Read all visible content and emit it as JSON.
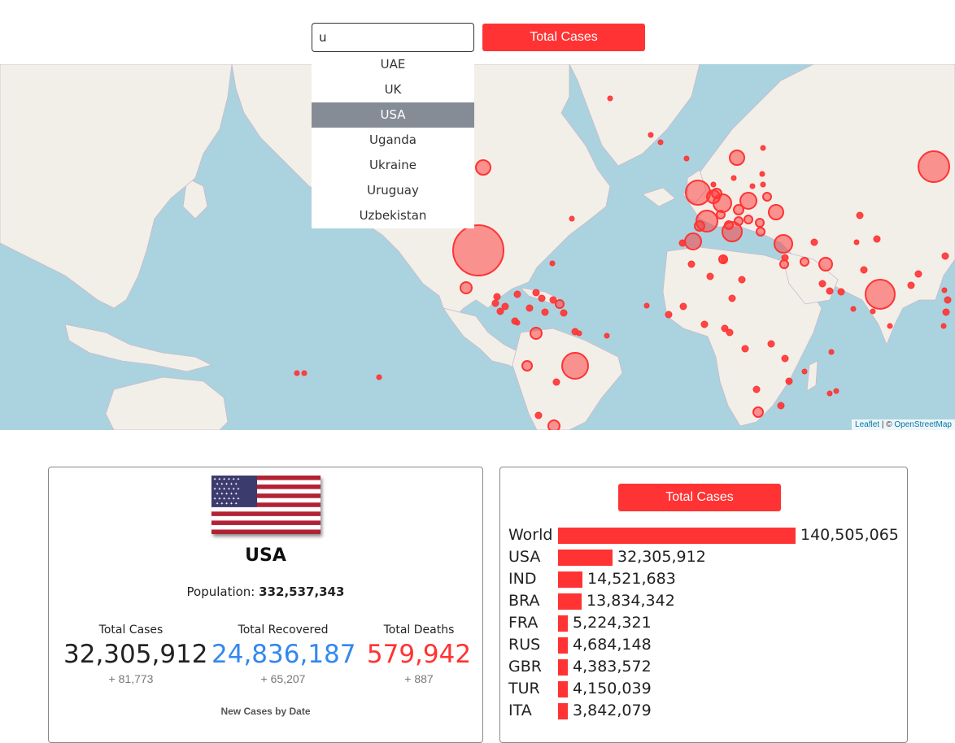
{
  "search": {
    "value": "u"
  },
  "top_button": {
    "label": "Total Cases"
  },
  "dropdown": {
    "items": [
      "UAE",
      "UK",
      "USA",
      "Uganda",
      "Ukraine",
      "Uruguay",
      "Uzbekistan"
    ],
    "active_index": 2
  },
  "map": {
    "attribution_leaflet": "Leaflet",
    "attribution_sep": " | © ",
    "attribution_osm": "OpenStreetMap",
    "ocean_color": "#aad3df",
    "land_color": "#f2efe9",
    "marker_color": "#ff3333"
  },
  "country_card": {
    "flag_icon": "usa-flag-icon",
    "name": "USA",
    "population_label": "Population:",
    "population_value": "332,537,343",
    "total_cases_label": "Total Cases",
    "total_cases_value": "32,305,912",
    "total_cases_delta": "+ 81,773",
    "total_recovered_label": "Total Recovered",
    "total_recovered_value": "24,836,187",
    "total_recovered_delta": "+ 65,207",
    "total_deaths_label": "Total Deaths",
    "total_deaths_value": "579,942",
    "total_deaths_delta": "+ 887",
    "graph_title": "New Cases by Date",
    "colors": {
      "cases": "#222222",
      "recovered": "#3388ee",
      "deaths": "#ff3333"
    }
  },
  "ranking_card": {
    "button_label": "Total Cases",
    "rows": [
      {
        "name": "World",
        "value": 140505065,
        "label": "140,505,065"
      },
      {
        "name": "USA",
        "value": 32305912,
        "label": "32,305,912"
      },
      {
        "name": "IND",
        "value": 14521683,
        "label": "14,521,683"
      },
      {
        "name": "BRA",
        "value": 13834342,
        "label": "13,834,342"
      },
      {
        "name": "FRA",
        "value": 5224321,
        "label": "5,224,321"
      },
      {
        "name": "RUS",
        "value": 4684148,
        "label": "4,684,148"
      },
      {
        "name": "GBR",
        "value": 4383572,
        "label": "4,383,572"
      },
      {
        "name": "TUR",
        "value": 4150039,
        "label": "4,150,039"
      },
      {
        "name": "ITA",
        "value": 3842079,
        "label": "3,842,079"
      }
    ]
  }
}
